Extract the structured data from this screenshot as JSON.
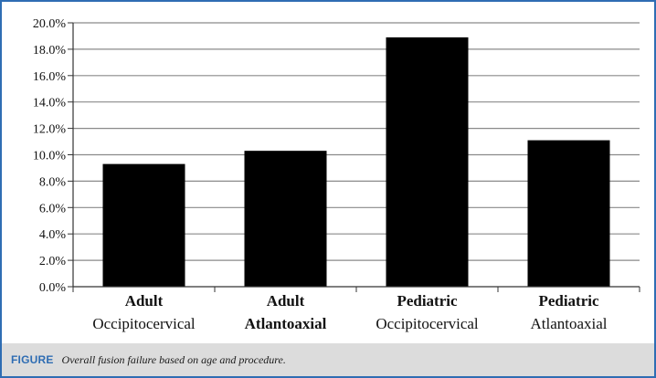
{
  "chart_data": {
    "type": "bar",
    "categories": [
      {
        "line1": "Adult",
        "line2": "Occipitocervical"
      },
      {
        "line1": "Adult",
        "line2": "Atlantoaxial"
      },
      {
        "line1": "Pediatric",
        "line2": "Occipitocervical"
      },
      {
        "line1": "Pediatric",
        "line2": "Atlantoaxial"
      }
    ],
    "values": [
      9.3,
      10.3,
      18.9,
      11.1
    ],
    "ylim": [
      0,
      20
    ],
    "yticks": [
      "0.0%",
      "2.0%",
      "4.0%",
      "6.0%",
      "8.0%",
      "10.0%",
      "12.0%",
      "14.0%",
      "16.0%",
      "18.0%",
      "20.0%"
    ],
    "grid": true,
    "bar_color": "#000000",
    "title": "",
    "xlabel": "",
    "ylabel": ""
  },
  "caption": {
    "tag": "FIGURE",
    "text": "Overall fusion failure based on age and procedure."
  },
  "colors": {
    "frame": "#2f6db3",
    "caption_bg": "#dcdcdc",
    "caption_tag": "#2f6db3"
  }
}
